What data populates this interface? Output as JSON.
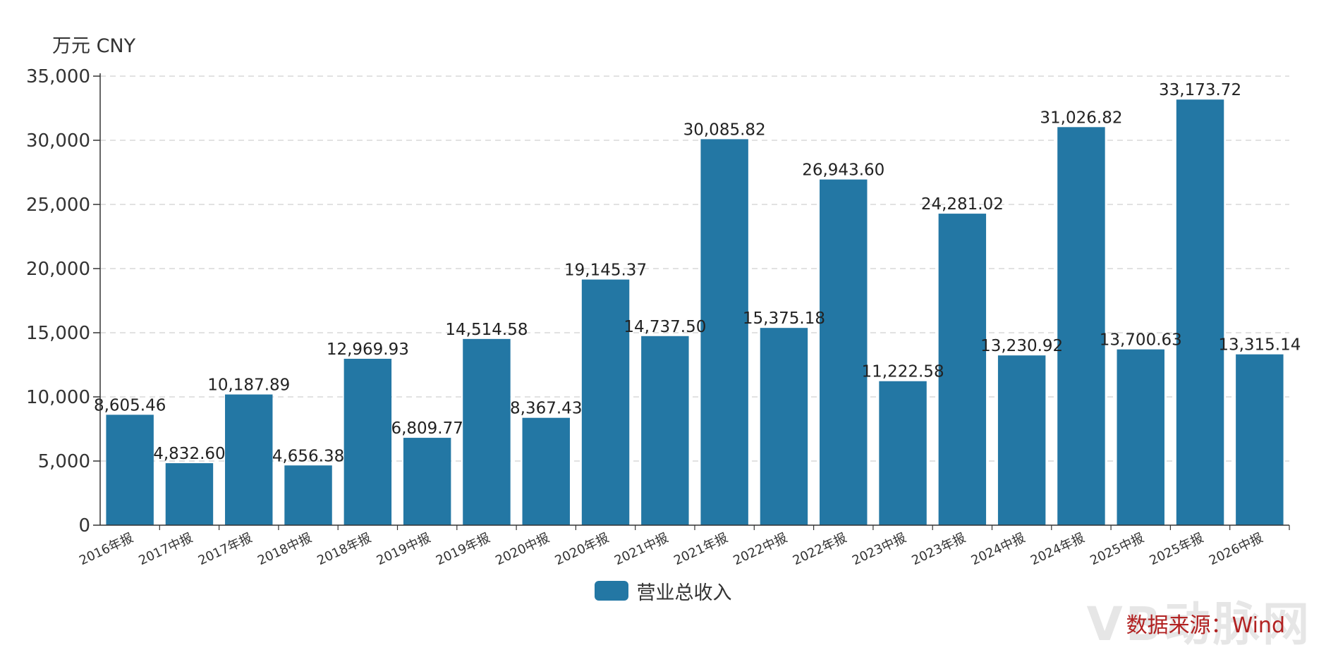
{
  "unit_label": "万元  CNY",
  "legend": {
    "label": "营业总收入",
    "color": "#2377a4"
  },
  "source": "数据来源：Wind",
  "watermark": "VB动脉网",
  "chart_data": {
    "type": "bar",
    "categories": [
      "2016年报",
      "2017中报",
      "2017年报",
      "2018中报",
      "2018年报",
      "2019中报",
      "2019年报",
      "2020中报",
      "2020年报",
      "2021中报",
      "2021年报",
      "2022中报",
      "2022年报",
      "2023中报",
      "2023年报",
      "2024中报",
      "2024年报",
      "2025中报",
      "2025年报",
      "2026中报"
    ],
    "series": [
      {
        "name": "营业总收入",
        "values": [
          8605.46,
          4832.6,
          10187.89,
          4656.38,
          12969.93,
          6809.77,
          14514.58,
          8367.43,
          19145.37,
          14737.5,
          30085.82,
          15375.18,
          26943.6,
          11222.58,
          24281.02,
          13230.92,
          31026.82,
          13700.63,
          33173.72,
          13315.14
        ],
        "labels": [
          "8,605.46",
          "4,832.60",
          "10,187.89",
          "4,656.38",
          "12,969.93",
          "6,809.77",
          "14,514.58",
          "8,367.43",
          "19,145.37",
          "14,737.50",
          "30,085.82",
          "15,375.18",
          "26,943.60",
          "11,222.58",
          "24,281.02",
          "13,230.92",
          "31,026.82",
          "13,700.63",
          "33,173.72",
          "13,315.14"
        ]
      }
    ],
    "yticks": [
      "0",
      "5,000",
      "10,000",
      "15,000",
      "20,000",
      "25,000",
      "30,000",
      "35,000"
    ],
    "ylim": [
      0,
      35000
    ],
    "grid": true,
    "bar_color": "#2377a4",
    "legend_position": "bottom"
  }
}
